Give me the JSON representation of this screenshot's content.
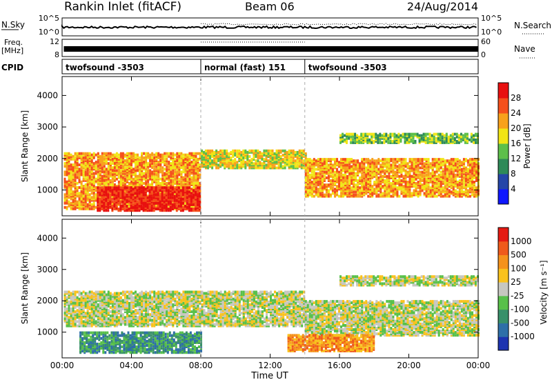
{
  "header": {
    "station": "Rankin Inlet (fitACF)",
    "beam": "Beam 06",
    "date": "24/Aug/2014"
  },
  "top_panels": {
    "nsky_label": "N.Sky",
    "nsky_ticks": [
      "10^5",
      "10^0"
    ],
    "nsearch_label": "N.Search",
    "nsearch_ticks": [
      "10^5",
      "10^0"
    ],
    "freq_label_1": "Freq.",
    "freq_label_2": "[MHz]",
    "freq_ticks": [
      "12",
      "8"
    ],
    "nave_label": "Nave",
    "nave_ticks": [
      "60",
      "0"
    ],
    "cpid_label": "CPID",
    "cpid_segments": [
      {
        "label": "twofsound -3503",
        "start_hour": 0,
        "end_hour": 8
      },
      {
        "label": "normal (fast) 151",
        "start_hour": 8,
        "end_hour": 14
      },
      {
        "label": "twofsound -3503",
        "start_hour": 14,
        "end_hour": 24
      }
    ]
  },
  "chart_data": [
    {
      "type": "heatmap",
      "title": "",
      "xlabel": "",
      "ylabel": "Slant Range [km]",
      "xlim": [
        0,
        24
      ],
      "ylim": [
        180,
        4600
      ],
      "yticks": [
        1000,
        2000,
        3000,
        4000
      ],
      "colorbar": {
        "label": "Power [dB]",
        "ticks": [
          "4",
          "8",
          "12",
          "16",
          "20",
          "24",
          "28"
        ],
        "colors": [
          "#0f17ff",
          "#2546a8",
          "#2e8a58",
          "#5dbf4a",
          "#f1e515",
          "#f8a11b",
          "#f5501b",
          "#e81010"
        ]
      },
      "bands": [
        {
          "start_hour": 0.1,
          "end_hour": 8,
          "min_km": 400,
          "max_km": 2200,
          "level": 5
        },
        {
          "start_hour": 8,
          "end_hour": 14,
          "min_km": 1700,
          "max_km": 2250,
          "level": 4
        },
        {
          "start_hour": 14,
          "end_hour": 24,
          "min_km": 800,
          "max_km": 2000,
          "level": 5
        },
        {
          "start_hour": 16,
          "end_hour": 24,
          "min_km": 2500,
          "max_km": 2800,
          "level": 3
        },
        {
          "start_hour": 2,
          "end_hour": 8,
          "min_km": 350,
          "max_km": 1100,
          "level": 7
        }
      ]
    },
    {
      "type": "heatmap",
      "title": "",
      "xlabel": "Time UT",
      "ylabel": "Slant Range [km]",
      "xlim": [
        0,
        24
      ],
      "ylim": [
        180,
        4600
      ],
      "yticks": [
        1000,
        2000,
        3000,
        4000
      ],
      "xticks": [
        "00:00",
        "04:00",
        "08:00",
        "12:00",
        "16:00",
        "20:00",
        "00:00"
      ],
      "colorbar": {
        "label": "Velocity [m s⁻¹]",
        "ticks": [
          "1000",
          "500",
          "100",
          "25",
          "-25",
          "-100",
          "-500",
          "-1000"
        ],
        "colors": [
          "#1d33b0",
          "#2e6fa8",
          "#38906a",
          "#58c04a",
          "#c7c7c0",
          "#f9c21d",
          "#f5921b",
          "#ef5a1b",
          "#e51a12"
        ]
      },
      "bands": [
        {
          "start_hour": 0.1,
          "end_hour": 14,
          "min_km": 1200,
          "max_km": 2300,
          "level": 4
        },
        {
          "start_hour": 14,
          "end_hour": 24,
          "min_km": 900,
          "max_km": 2000,
          "level": 4
        },
        {
          "start_hour": 1,
          "end_hour": 8,
          "min_km": 350,
          "max_km": 1000,
          "level": 2
        },
        {
          "start_hour": 13,
          "end_hour": 18,
          "min_km": 400,
          "max_km": 900,
          "level": 6
        },
        {
          "start_hour": 16,
          "end_hour": 24,
          "min_km": 2500,
          "max_km": 2800,
          "level": 4
        }
      ]
    }
  ]
}
